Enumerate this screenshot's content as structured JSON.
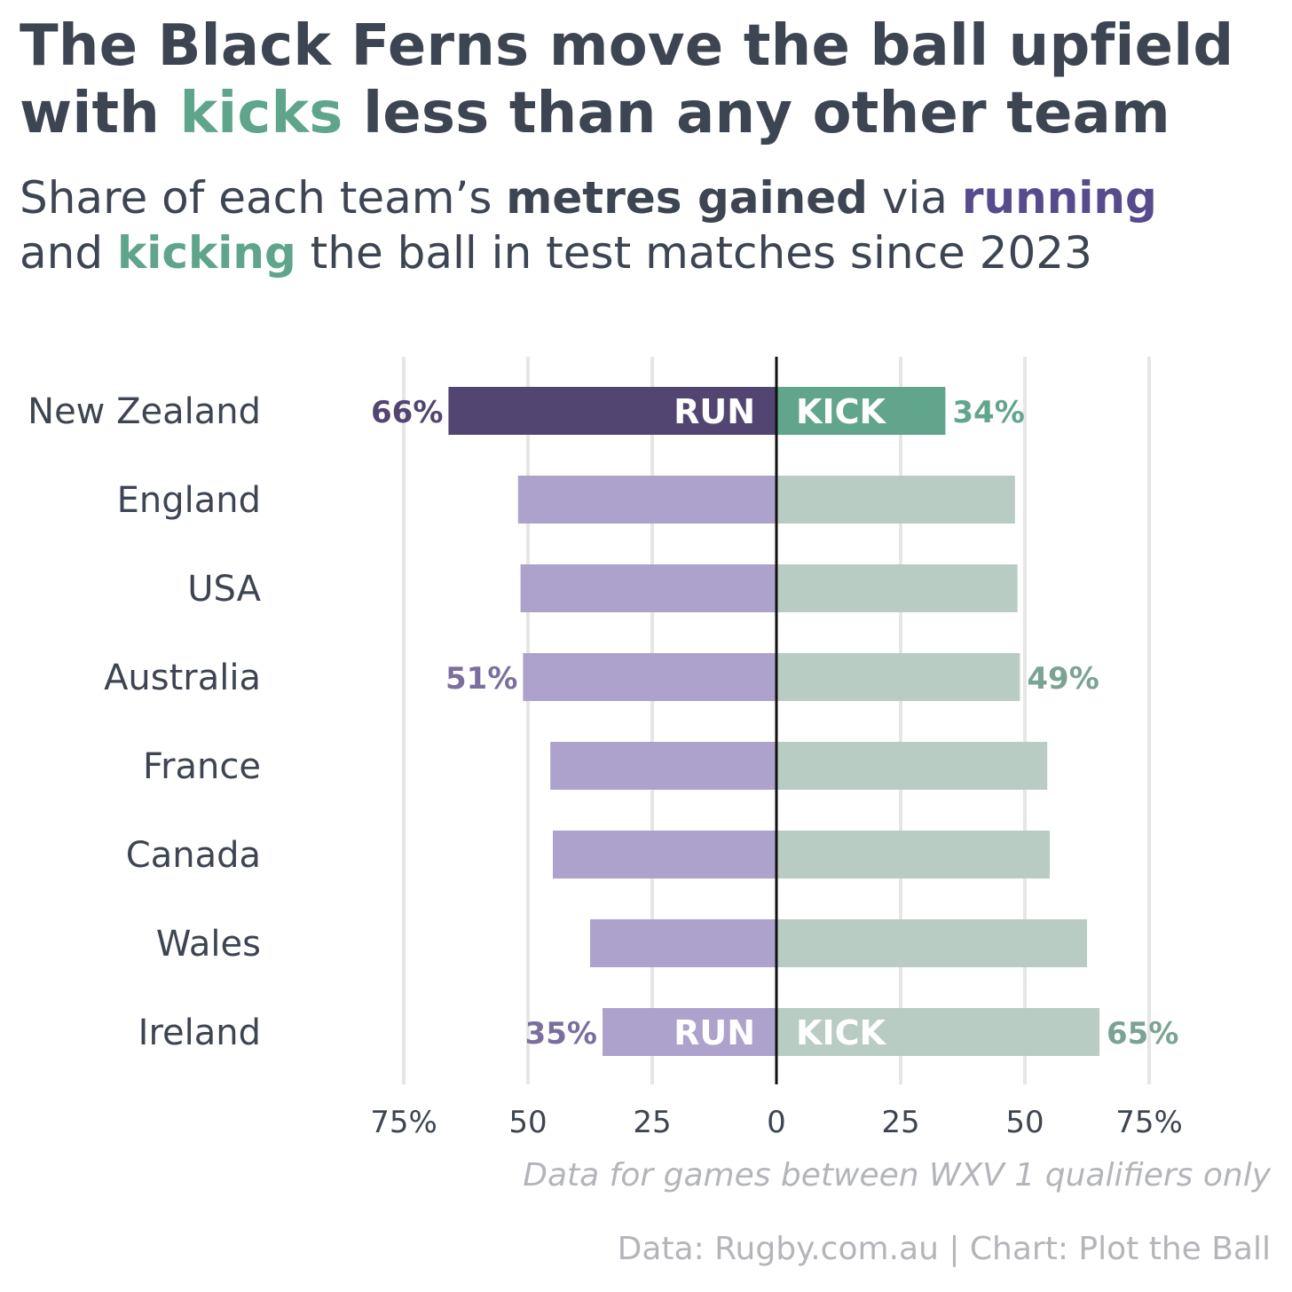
{
  "title": {
    "line1": "The Black Ferns move the ball upfield",
    "line2_pre": "with ",
    "line2_hl": "kicks",
    "line2_post": " less than any other team"
  },
  "subtitle": {
    "p1": "Share of each team’s ",
    "p2": "metres gained",
    "p3": " via ",
    "p4": "running",
    "p5": "and ",
    "p6": "kicking",
    "p7": " the ball in test matches since 2023"
  },
  "note": "Data for games between WXV 1 qualifiers only",
  "source": "Data: Rugby.com.au | Chart: Plot the Ball",
  "colors": {
    "run_highlight": "#524571",
    "kick_highlight": "#62a58d",
    "run": "#ada2cc",
    "kick": "#b8ccc4",
    "run_label_dim": "#7c6f9f",
    "kick_label_dim": "#7ba393",
    "grid": "#e6e6e6",
    "axis": "#111111",
    "text": "#3d4552"
  },
  "chart_data": {
    "type": "bar",
    "orientation": "horizontal-diverging",
    "categories": [
      "New Zealand",
      "England",
      "USA",
      "Australia",
      "France",
      "Canada",
      "Wales",
      "Ireland"
    ],
    "series": [
      {
        "name": "RUN",
        "values": [
          66,
          52,
          51.5,
          51,
          45.5,
          45,
          37.5,
          35
        ]
      },
      {
        "name": "KICK",
        "values": [
          34,
          48,
          48.5,
          49,
          54.5,
          55,
          62.5,
          65
        ]
      }
    ],
    "xlim": [
      -75,
      75
    ],
    "x_ticks": [
      {
        "value": -75,
        "label": "75%"
      },
      {
        "value": -50,
        "label": "50"
      },
      {
        "value": -25,
        "label": "25"
      },
      {
        "value": 0,
        "label": "0"
      },
      {
        "value": 25,
        "label": "25"
      },
      {
        "value": 50,
        "label": "50"
      },
      {
        "value": 75,
        "label": "75%"
      }
    ],
    "grid": true,
    "highlight": "New Zealand",
    "data_labels": [
      {
        "category": "New Zealand",
        "run": "66%",
        "kick": "34%"
      },
      {
        "category": "Australia",
        "run": "51%",
        "kick": "49%"
      },
      {
        "category": "Ireland",
        "run": "35%",
        "kick": "65%"
      }
    ],
    "inline_labels": [
      {
        "category": "New Zealand",
        "run": "RUN",
        "kick": "KICK"
      },
      {
        "category": "Ireland",
        "run": "RUN",
        "kick": "KICK"
      }
    ]
  }
}
